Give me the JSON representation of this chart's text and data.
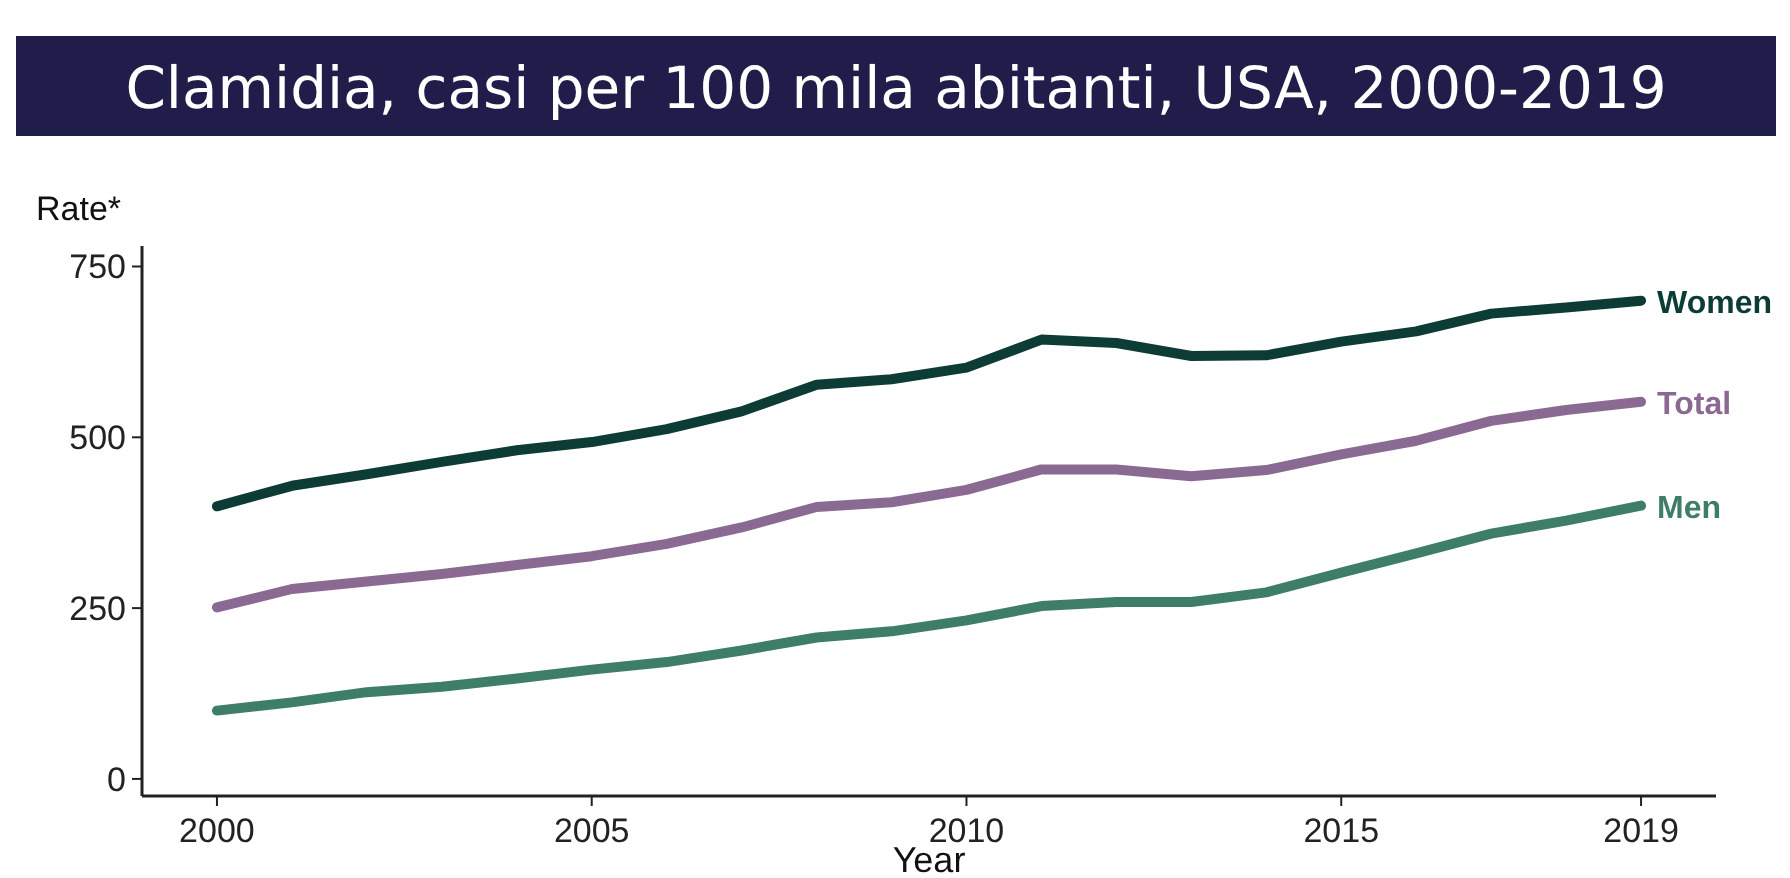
{
  "chart_data": {
    "type": "line",
    "title": "Clamidia, casi per 100 mila abitanti, USA, 2000-2019",
    "xlabel": "Year",
    "ylabel": "Rate*",
    "x": [
      2000,
      2001,
      2002,
      2003,
      2004,
      2005,
      2006,
      2007,
      2008,
      2009,
      2010,
      2011,
      2012,
      2013,
      2014,
      2015,
      2016,
      2017,
      2018,
      2019
    ],
    "series": [
      {
        "name": "Women",
        "color": "#0d3b36",
        "values": [
          399,
          429,
          446,
          464,
          481,
          493,
          512,
          538,
          577,
          585,
          602,
          643,
          638,
          619,
          620,
          640,
          655,
          681,
          690,
          700
        ]
      },
      {
        "name": "Total",
        "color": "#8a6a92",
        "values": [
          251,
          278,
          289,
          300,
          313,
          326,
          344,
          368,
          398,
          405,
          423,
          453,
          453,
          443,
          452,
          475,
          495,
          524,
          540,
          552
        ]
      },
      {
        "name": "Men",
        "color": "#3e7e68",
        "values": [
          100,
          112,
          127,
          135,
          147,
          160,
          171,
          188,
          207,
          216,
          232,
          253,
          259,
          259,
          273,
          302,
          330,
          359,
          378,
          400
        ]
      }
    ],
    "xlim": [
      1999,
      2020
    ],
    "xticks": [
      2000,
      2005,
      2010,
      2015,
      2019
    ],
    "ylim": [
      -25,
      780
    ],
    "yticks": [
      0,
      250,
      500,
      750
    ],
    "grid": false,
    "marker": "none",
    "line_style": "solid"
  }
}
